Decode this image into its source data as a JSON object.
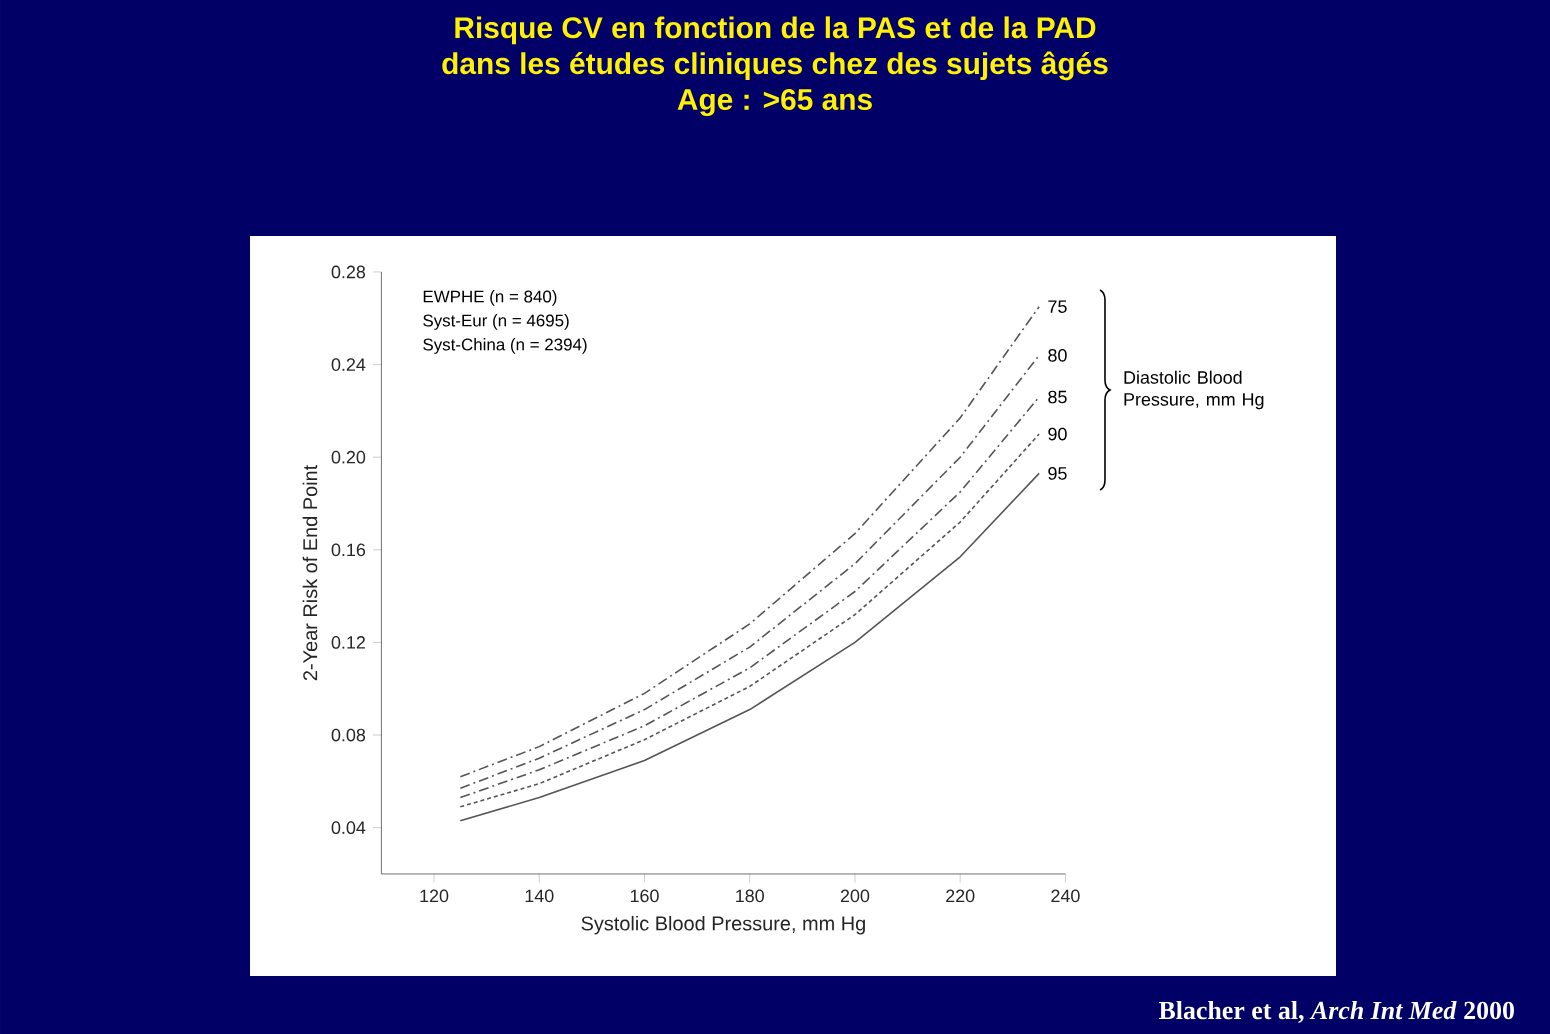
{
  "chart_data": {
    "type": "line",
    "title": "Risque CV en fonction de la PAS et de la PAD\ndans les études cliniques chez des sujets âgés\nAge : >65 ans",
    "xlabel": "Systolic Blood Pressure, mm Hg",
    "ylabel": "2-Year Risk of End Point",
    "legend_title": "Diastolic Blood Pressure, mm Hg",
    "annotations": [
      "EWPHE (n = 840)",
      "Syst-Eur (n = 4695)",
      "Syst-China (n = 2394)",
      "Blacher et al, *Arch Int Med* 2000"
    ],
    "x": [
      125,
      140,
      160,
      180,
      200,
      220,
      235
    ],
    "series": [
      {
        "name": "75",
        "color": "#555555",
        "line_style": "dashed",
        "values": [
          0.062,
          0.075,
          0.098,
          0.128,
          0.167,
          0.217,
          0.265
        ]
      },
      {
        "name": "80",
        "color": "#555555",
        "line_style": "dashed",
        "values": [
          0.057,
          0.07,
          0.091,
          0.118,
          0.154,
          0.2,
          0.244
        ]
      },
      {
        "name": "85",
        "color": "#555555",
        "line_style": "dashed",
        "values": [
          0.053,
          0.065,
          0.084,
          0.109,
          0.142,
          0.185,
          0.226
        ]
      },
      {
        "name": "90",
        "color": "#555555",
        "line_style": "dotted",
        "values": [
          0.049,
          0.059,
          0.078,
          0.101,
          0.132,
          0.172,
          0.21
        ]
      },
      {
        "name": "95",
        "color": "#555555",
        "line_style": "solid",
        "values": [
          0.043,
          0.053,
          0.069,
          0.091,
          0.12,
          0.157,
          0.193
        ]
      }
    ],
    "xlim": [
      110,
      240
    ],
    "ylim": [
      0.02,
      0.28
    ],
    "xticks": [
      120,
      140,
      160,
      180,
      200,
      220,
      240
    ],
    "yticks": [
      0.04,
      0.08,
      0.12,
      0.16,
      {
        "value": 0.2,
        "label": "0.20"
      },
      0.24,
      0.28
    ],
    "grid": false,
    "legend": false,
    "marker": "none"
  }
}
